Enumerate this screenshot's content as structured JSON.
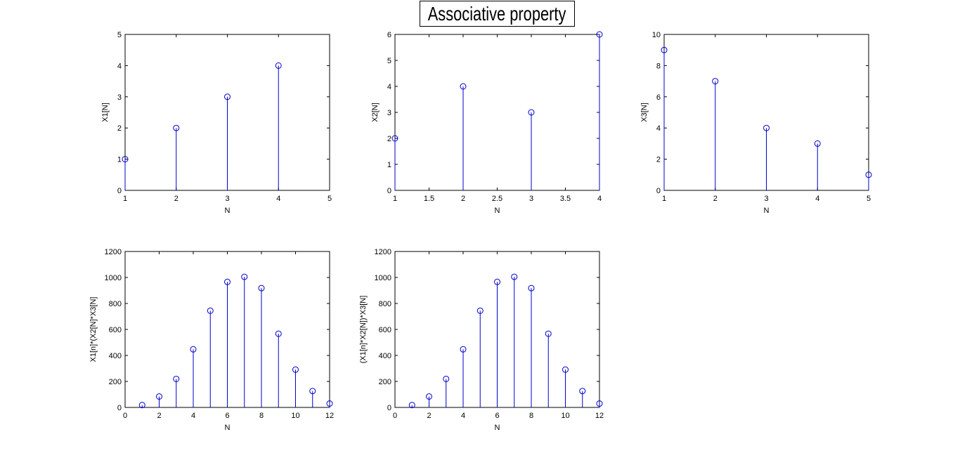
{
  "figure": {
    "title": "Associative property"
  },
  "style": {
    "stem_color": "#0000cc",
    "marker_color": "#0000cc",
    "axes_color": "#000000"
  },
  "chart_data": [
    {
      "type": "stem",
      "id": "x1",
      "x": [
        1,
        2,
        3,
        4
      ],
      "y": [
        1,
        2,
        3,
        4
      ],
      "xlim": [
        1,
        5
      ],
      "ylim": [
        0,
        5
      ],
      "xticks": [
        1,
        2,
        3,
        4,
        5
      ],
      "yticks": [
        0,
        1,
        2,
        3,
        4,
        5
      ],
      "xlabel": "N",
      "ylabel": "X1[N]",
      "grid": false
    },
    {
      "type": "stem",
      "id": "x2",
      "x": [
        1,
        2,
        3,
        4
      ],
      "y": [
        2,
        4,
        3,
        6
      ],
      "xlim": [
        1,
        4
      ],
      "ylim": [
        0,
        6
      ],
      "xticks": [
        1,
        1.5,
        2,
        2.5,
        3,
        3.5,
        4
      ],
      "yticks": [
        0,
        1,
        2,
        3,
        4,
        5,
        6
      ],
      "xlabel": "N",
      "ylabel": "X2[N]",
      "grid": false
    },
    {
      "type": "stem",
      "id": "x3",
      "x": [
        1,
        2,
        3,
        4,
        5
      ],
      "y": [
        9,
        7,
        4,
        3,
        1
      ],
      "xlim": [
        1,
        5
      ],
      "ylim": [
        0,
        10
      ],
      "xticks": [
        1,
        2,
        3,
        4,
        5
      ],
      "yticks": [
        0,
        2,
        4,
        6,
        8,
        10
      ],
      "xlabel": "N",
      "ylabel": "X3[N]",
      "grid": false
    },
    {
      "type": "stem",
      "id": "conv-left",
      "x": [
        1,
        2,
        3,
        4,
        5,
        6,
        7,
        8,
        9,
        10,
        11,
        12
      ],
      "y": [
        18,
        84,
        219,
        447,
        744,
        966,
        1005,
        918,
        567,
        291,
        126,
        30
      ],
      "xlim": [
        0,
        12
      ],
      "ylim": [
        0,
        1200
      ],
      "xticks": [
        0,
        2,
        4,
        6,
        8,
        10,
        12
      ],
      "yticks": [
        0,
        200,
        400,
        600,
        800,
        1000,
        1200
      ],
      "xlabel": "N",
      "ylabel": "X1[n]*(X2[N]*X3[N]",
      "grid": false
    },
    {
      "type": "stem",
      "id": "conv-right",
      "x": [
        1,
        2,
        3,
        4,
        5,
        6,
        7,
        8,
        9,
        10,
        11,
        12
      ],
      "y": [
        18,
        84,
        219,
        447,
        744,
        966,
        1005,
        918,
        567,
        291,
        126,
        30
      ],
      "xlim": [
        0,
        12
      ],
      "ylim": [
        0,
        1200
      ],
      "xticks": [
        0,
        2,
        4,
        6,
        8,
        10,
        12
      ],
      "yticks": [
        0,
        200,
        400,
        600,
        800,
        1000,
        1200
      ],
      "xlabel": "N",
      "ylabel": "(X1[n]*X2[N])*X3[N]",
      "grid": false
    }
  ]
}
